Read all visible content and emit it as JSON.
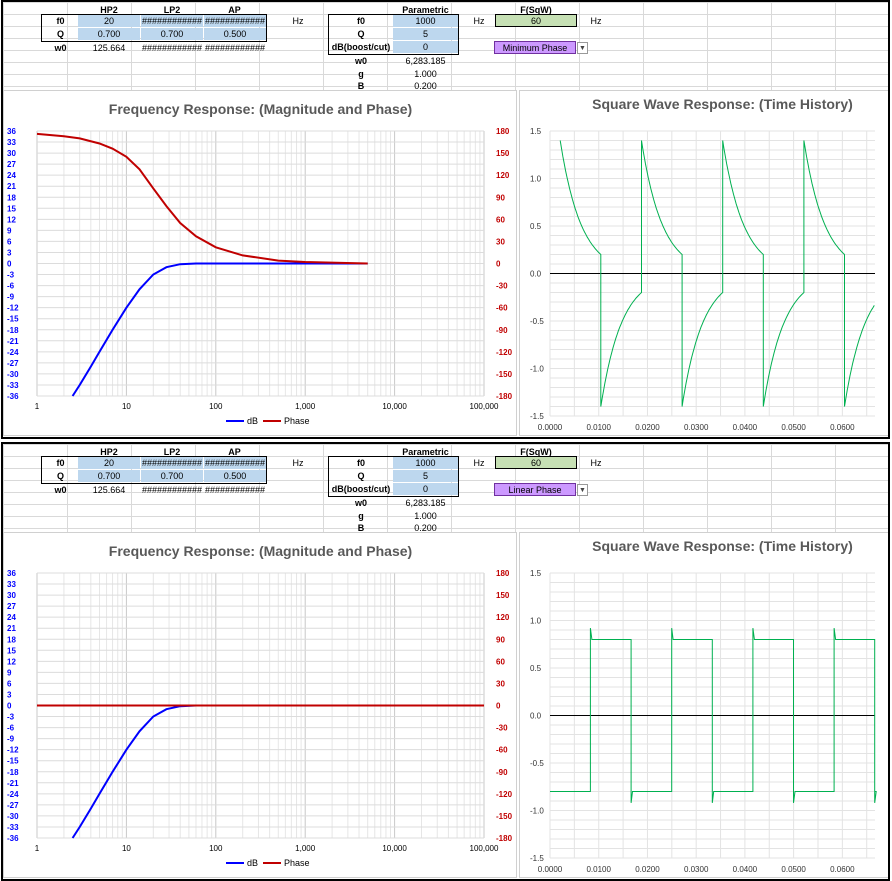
{
  "panels": [
    {
      "mode": "Minimum Phase",
      "headers": {
        "hp2": "HP2",
        "lp2": "LP2",
        "ap": "AP",
        "parametric": "Parametric",
        "fsqw": "F(SqW)"
      },
      "rows": [
        {
          "label": "f0",
          "hp2": "20",
          "lp2": "############",
          "ap": "############"
        },
        {
          "label": "Q",
          "hp2": "0.700",
          "lp2": "0.700",
          "ap": "0.500"
        },
        {
          "label": "w0",
          "hp2": "125.664",
          "lp2": "############",
          "ap": "############"
        }
      ],
      "hz1": "Hz",
      "parametric_rows": [
        {
          "label": "f0",
          "value": "1000"
        },
        {
          "label": "Q",
          "value": "5"
        },
        {
          "label": "dB(boost/cut)",
          "value": "0"
        },
        {
          "label": "w0",
          "value": "6,283.185"
        },
        {
          "label": "g",
          "value": "1.000"
        },
        {
          "label": "B",
          "value": "0.200"
        }
      ],
      "hz2": "Hz",
      "fsqw_value": "60",
      "hz3": "Hz",
      "freq_title": "Frequency Response: (Magnitude and Phase)",
      "sq_title": "Square Wave Response: (Time History)",
      "legend_db": "dB",
      "legend_phase": "Phase"
    },
    {
      "mode": "Linear Phase",
      "headers": {
        "hp2": "HP2",
        "lp2": "LP2",
        "ap": "AP",
        "parametric": "Parametric",
        "fsqw": "F(SqW)"
      },
      "rows": [
        {
          "label": "f0",
          "hp2": "20",
          "lp2": "############",
          "ap": "############"
        },
        {
          "label": "Q",
          "hp2": "0.700",
          "lp2": "0.700",
          "ap": "0.500"
        },
        {
          "label": "w0",
          "hp2": "125.664",
          "lp2": "############",
          "ap": "############"
        }
      ],
      "hz1": "Hz",
      "parametric_rows": [
        {
          "label": "f0",
          "value": "1000"
        },
        {
          "label": "Q",
          "value": "5"
        },
        {
          "label": "dB(boost/cut)",
          "value": "0"
        },
        {
          "label": "w0",
          "value": "6,283.185"
        },
        {
          "label": "g",
          "value": "1.000"
        },
        {
          "label": "B",
          "value": "0.200"
        }
      ],
      "hz2": "Hz",
      "fsqw_value": "60",
      "hz3": "Hz",
      "freq_title": "Frequency Response: (Magnitude and Phase)",
      "sq_title": "Square Wave Response: (Time History)",
      "legend_db": "dB",
      "legend_phase": "Phase"
    }
  ],
  "colors": {
    "db": "#0000ff",
    "phase": "#c00000",
    "square": "#00b050",
    "cell_blue": "#bdd7ee",
    "cell_green": "#c6e0b4",
    "dropdown": "#cc99ff"
  },
  "chart_data": [
    {
      "type": "line",
      "title": "Frequency Response: (Magnitude and Phase)",
      "x_scale": "log",
      "xlim": [
        1,
        100000
      ],
      "x_ticks": [
        "1",
        "10",
        "100",
        "1,000",
        "10,000",
        "100,000"
      ],
      "ylim_left": [
        -36,
        36
      ],
      "ylim_right": [
        -180,
        180
      ],
      "y_ticks_left": [
        "36",
        "33",
        "30",
        "27",
        "24",
        "21",
        "18",
        "15",
        "12",
        "9",
        "6",
        "3",
        "0",
        "-3",
        "-6",
        "-9",
        "-12",
        "-15",
        "-18",
        "-21",
        "-24",
        "-27",
        "-30",
        "-33",
        "-36"
      ],
      "y_ticks_right": [
        "180",
        "150",
        "120",
        "90",
        "60",
        "30",
        "0",
        "-30",
        "-60",
        "-90",
        "-120",
        "-150",
        "-180"
      ],
      "series": [
        {
          "name": "dB",
          "axis": "left",
          "x": [
            2.5,
            3,
            4,
            5,
            7,
            10,
            14,
            20,
            28,
            40,
            60,
            100,
            1000,
            5000
          ],
          "values": [
            -36,
            -33,
            -28,
            -24,
            -18,
            -12,
            -7,
            -3,
            -1,
            -0.2,
            0,
            0,
            0,
            0
          ]
        },
        {
          "name": "Phase",
          "axis": "right",
          "x": [
            1,
            2,
            3,
            5,
            7,
            10,
            14,
            20,
            28,
            40,
            60,
            100,
            200,
            500,
            1000,
            5000
          ],
          "values": [
            176,
            173,
            170,
            163,
            156,
            145,
            128,
            102,
            78,
            55,
            37,
            22,
            11,
            4,
            2,
            0
          ]
        }
      ],
      "legend": "bottom",
      "grid": true
    },
    {
      "type": "line",
      "title": "Square Wave Response: (Time History)",
      "xlim": [
        0,
        0.0667
      ],
      "ylim": [
        -1.5,
        1.5
      ],
      "x_ticks": [
        "0.0000",
        "0.0100",
        "0.0200",
        "0.0300",
        "0.0400",
        "0.0500",
        "0.0600"
      ],
      "y_ticks": [
        "1.5",
        "1.0",
        "0.5",
        "0.0",
        "-0.5",
        "-1.0",
        "-1.5"
      ],
      "period": 0.01667,
      "start_time": 0.0021,
      "edge_high": 1.4,
      "edge_low": 0.2,
      "grid": true
    },
    {
      "type": "line",
      "title": "Frequency Response: (Magnitude and Phase)",
      "x_scale": "log",
      "xlim": [
        1,
        100000
      ],
      "x_ticks": [
        "1",
        "10",
        "100",
        "1,000",
        "10,000",
        "100,000"
      ],
      "ylim_left": [
        -36,
        36
      ],
      "ylim_right": [
        -180,
        180
      ],
      "y_ticks_left": [
        "36",
        "33",
        "30",
        "27",
        "24",
        "21",
        "18",
        "15",
        "12",
        "9",
        "6",
        "3",
        "0",
        "-3",
        "-6",
        "-9",
        "-12",
        "-15",
        "-18",
        "-21",
        "-24",
        "-27",
        "-30",
        "-33",
        "-36"
      ],
      "y_ticks_right": [
        "180",
        "150",
        "120",
        "90",
        "60",
        "30",
        "0",
        "-30",
        "-60",
        "-90",
        "-120",
        "-150",
        "-180"
      ],
      "series": [
        {
          "name": "dB",
          "axis": "left",
          "x": [
            2.5,
            3,
            4,
            5,
            7,
            10,
            14,
            20,
            28,
            40,
            60,
            100,
            1000,
            100000
          ],
          "values": [
            -36,
            -33,
            -28,
            -24,
            -18,
            -12,
            -7,
            -3,
            -1,
            -0.2,
            0,
            0,
            0,
            0
          ]
        },
        {
          "name": "Phase",
          "axis": "right",
          "x": [
            1,
            10,
            100,
            1000,
            10000,
            100000
          ],
          "values": [
            0,
            0,
            0,
            0,
            0,
            0
          ]
        }
      ],
      "legend": "bottom",
      "grid": true
    },
    {
      "type": "line",
      "title": "Square Wave Response: (Time History)",
      "xlim": [
        0,
        0.0667
      ],
      "ylim": [
        -1.5,
        1.5
      ],
      "x_ticks": [
        "0.0000",
        "0.0100",
        "0.0200",
        "0.0300",
        "0.0400",
        "0.0500",
        "0.0600"
      ],
      "y_ticks": [
        "1.5",
        "1.0",
        "0.5",
        "0.0",
        "-0.5",
        "-1.0",
        "-1.5"
      ],
      "period": 0.01667,
      "start_time": 0.0083,
      "level_high": 0.8,
      "level_low": -0.8,
      "grid": true
    }
  ]
}
